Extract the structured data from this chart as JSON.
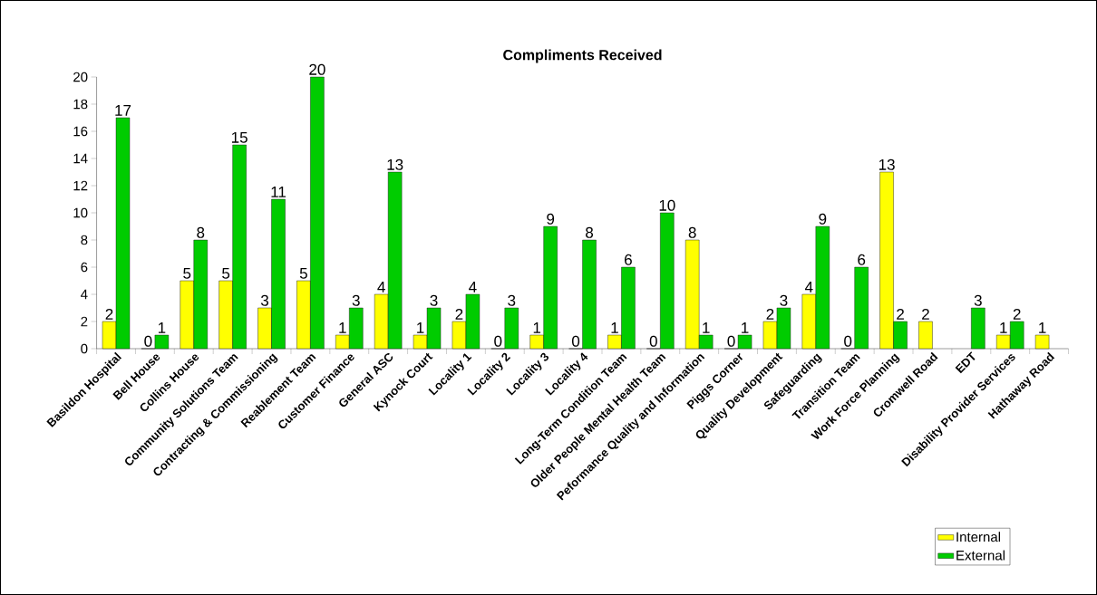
{
  "chart_data": {
    "type": "bar",
    "title": "Compliments Received",
    "categories": [
      "Basildon Hospital",
      "Bell House",
      "Collins House",
      "Community Solutions Team",
      "Contracting & Commissioning",
      "Reablement Team",
      "Customer Finance",
      "General ASC",
      "Kynock Court",
      "Locality 1",
      "Locality 2",
      "Locality 3",
      "Locality 4",
      "Long-Term Condition Team",
      "Older People Mental Health Team",
      "Peformance Quality and Information",
      "Piggs Corner",
      "Quality Development",
      "Safeguarding",
      "Transition Team",
      "Work Force Planning",
      "Cromwell Road",
      "EDT",
      "Disability Provider Services",
      "Hathaway Road"
    ],
    "series": [
      {
        "name": "Internal",
        "color": "#ffff00",
        "values": [
          2,
          0,
          5,
          5,
          3,
          5,
          1,
          4,
          1,
          2,
          0,
          1,
          0,
          1,
          0,
          8,
          0,
          2,
          4,
          0,
          13,
          2,
          null,
          1,
          1
        ]
      },
      {
        "name": "External",
        "color": "#00cc00",
        "values": [
          17,
          1,
          8,
          15,
          11,
          20,
          3,
          13,
          3,
          4,
          3,
          9,
          8,
          6,
          10,
          1,
          1,
          3,
          9,
          6,
          2,
          null,
          3,
          2,
          null
        ]
      }
    ],
    "ylim": [
      0,
      20
    ],
    "yticks": [
      0,
      2,
      4,
      6,
      8,
      10,
      12,
      14,
      16,
      18,
      20
    ],
    "data_labels": true,
    "grid": false,
    "legend": "bottom right"
  }
}
